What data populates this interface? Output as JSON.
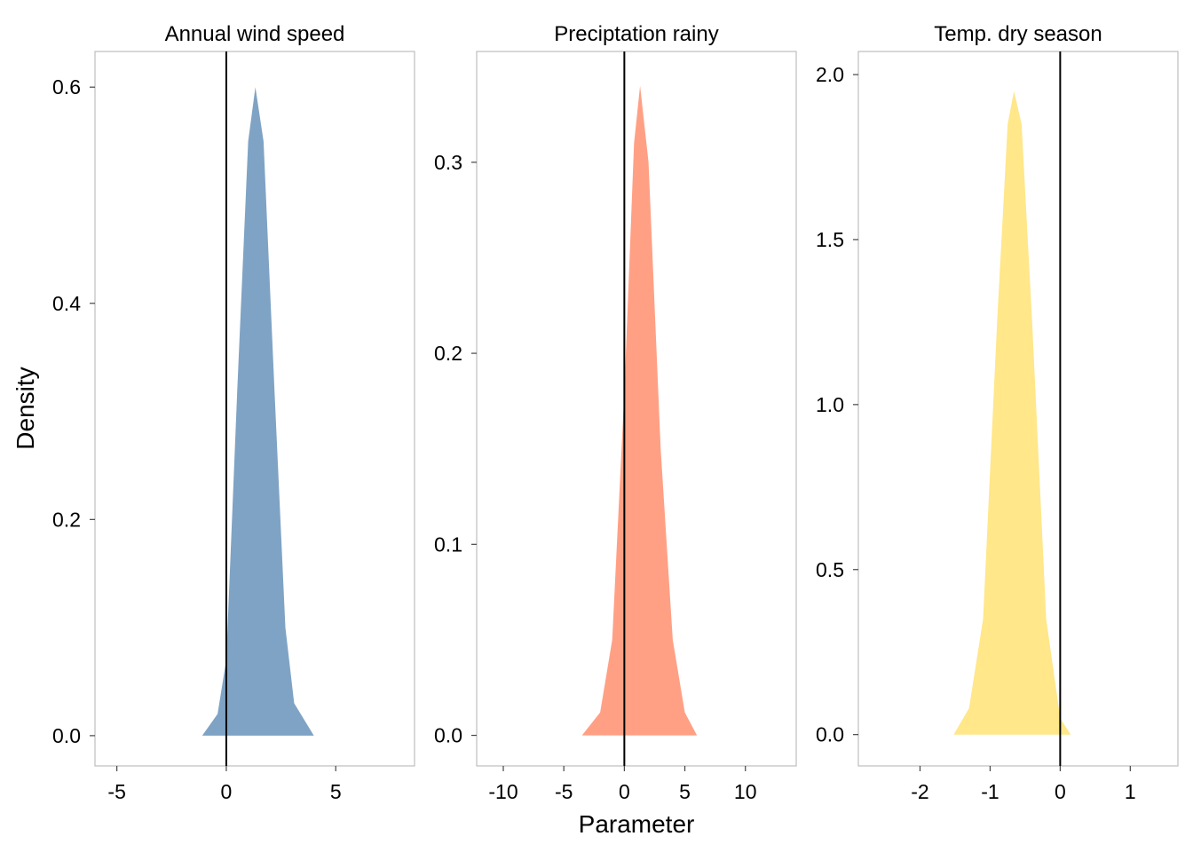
{
  "chart_data": {
    "type": "area",
    "layout": "facets-1x3",
    "xlabel": "Parameter",
    "ylabel": "Density",
    "reference_line_x": 0,
    "grid": false,
    "legend": "none",
    "panels": [
      {
        "title": "Annual wind speed",
        "color": "#7FA3C4",
        "xlim": [
          -6.0,
          8.6
        ],
        "ylim": [
          -0.028,
          0.633
        ],
        "xticks": [
          -5,
          0,
          5
        ],
        "xtick_labels": [
          "-5",
          "0",
          "5"
        ],
        "yticks": [
          0.0,
          0.2,
          0.4,
          0.6
        ],
        "ytick_labels": [
          "0.0",
          "0.2",
          "0.4",
          "0.6"
        ],
        "x": [
          -1.1,
          -0.4,
          0.0,
          0.5,
          1.0,
          1.33,
          1.7,
          2.2,
          2.7,
          3.1,
          4.0
        ],
        "y": [
          0.0,
          0.02,
          0.07,
          0.32,
          0.55,
          0.6,
          0.55,
          0.32,
          0.1,
          0.03,
          0.0
        ]
      },
      {
        "title": "Preciptation rainy",
        "color": "#FFA085",
        "xlim": [
          -12.2,
          14.2
        ],
        "ylim": [
          -0.016,
          0.358
        ],
        "xticks": [
          -10,
          -5,
          0,
          5,
          10
        ],
        "xtick_labels": [
          "-10",
          "-5",
          "0",
          "5",
          "10"
        ],
        "yticks": [
          0.0,
          0.1,
          0.2,
          0.3
        ],
        "ytick_labels": [
          "0.0",
          "0.1",
          "0.2",
          "0.3"
        ],
        "x": [
          -3.5,
          -2.0,
          -1.0,
          0.0,
          0.8,
          1.3,
          2.0,
          3.0,
          4.0,
          5.0,
          6.0
        ],
        "y": [
          0.0,
          0.012,
          0.05,
          0.18,
          0.31,
          0.34,
          0.3,
          0.15,
          0.05,
          0.012,
          0.0
        ]
      },
      {
        "title": "Temp. dry season",
        "color": "#FFE78A",
        "xlim": [
          -2.88,
          1.68
        ],
        "ylim": [
          -0.095,
          2.07
        ],
        "xticks": [
          -2,
          -1,
          0,
          1
        ],
        "xtick_labels": [
          "-2",
          "-1",
          "0",
          "1"
        ],
        "yticks": [
          0.0,
          0.5,
          1.0,
          1.5,
          2.0
        ],
        "ytick_labels": [
          "0.0",
          "0.5",
          "1.0",
          "1.5",
          "2.0"
        ],
        "x": [
          -1.52,
          -1.3,
          -1.1,
          -0.9,
          -0.75,
          -0.66,
          -0.55,
          -0.4,
          -0.2,
          0.0,
          0.15
        ],
        "y": [
          0.0,
          0.08,
          0.35,
          1.25,
          1.85,
          1.95,
          1.85,
          1.25,
          0.35,
          0.05,
          0.0
        ]
      }
    ]
  }
}
